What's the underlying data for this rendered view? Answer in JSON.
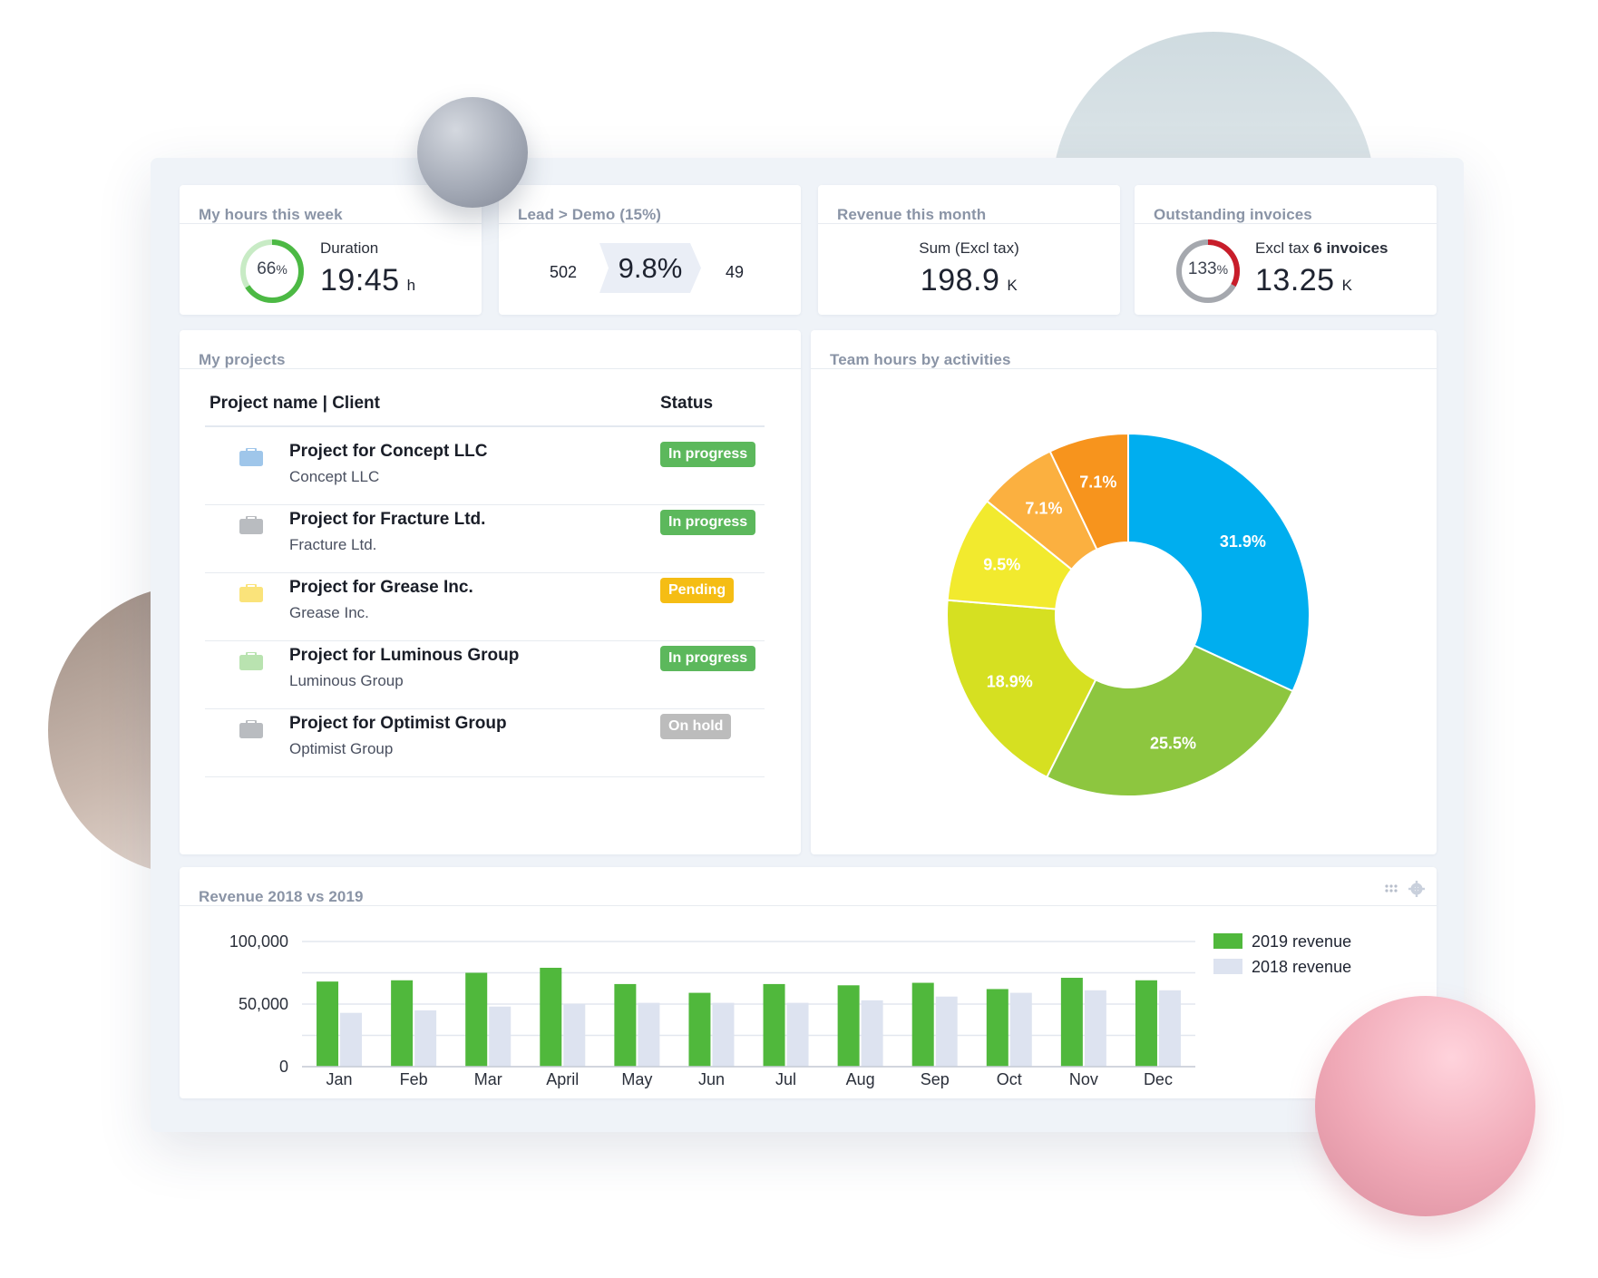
{
  "kpis": {
    "hours": {
      "title": "My hours this week",
      "percent": 66,
      "percent_label": "66",
      "percent_sign": "%",
      "caption": "Duration",
      "value": "19:45",
      "unit": "h",
      "ring_color": "#4cb944",
      "ring_track_color": "#c8ebc5"
    },
    "lead": {
      "title": "Lead > Demo (15%)",
      "left_value": "502",
      "center_value": "9.8%",
      "right_value": "49"
    },
    "revenue": {
      "title": "Revenue this month",
      "caption": "Sum (Excl tax)",
      "value": "198.9",
      "unit": "K"
    },
    "invoices": {
      "title": "Outstanding invoices",
      "percent": 133,
      "percent_label": "133",
      "percent_sign": "%",
      "caption_prefix": "Excl tax",
      "caption_bold": "6 invoices",
      "value": "13.25",
      "unit": "K",
      "ring_color": "#c81d2a",
      "ring_track_color": "#a5a8ae"
    }
  },
  "projects": {
    "title": "My projects",
    "col_name": "Project name | Client",
    "col_status": "Status",
    "rows": [
      {
        "name": "Project for Concept LLC",
        "client": "Concept LLC",
        "status": "In progress",
        "status_color": "#5cb85c",
        "icon_color": "#9fc6ea",
        "icon": "briefcase-icon"
      },
      {
        "name": "Project for Fracture Ltd.",
        "client": "Fracture Ltd.",
        "status": "In progress",
        "status_color": "#5cb85c",
        "icon_color": "#b9bcc0",
        "icon": "briefcase-icon"
      },
      {
        "name": "Project for Grease Inc.",
        "client": "Grease Inc.",
        "status": "Pending",
        "status_color": "#f5bd14",
        "icon_color": "#fae37a",
        "icon": "briefcase-icon"
      },
      {
        "name": "Project for Luminous Group",
        "client": "Luminous Group",
        "status": "In progress",
        "status_color": "#5cb85c",
        "icon_color": "#b9e3b0",
        "icon": "briefcase-icon"
      },
      {
        "name": "Project for Optimist Group",
        "client": "Optimist Group",
        "status": "On hold",
        "status_color": "#bcbcbc",
        "icon_color": "#b9bcc0",
        "icon": "briefcase-icon"
      }
    ]
  },
  "team_hours": {
    "title": "Team hours by activities",
    "chart_data": {
      "type": "pie",
      "title": "Team hours by activities",
      "donut": true,
      "slices": [
        {
          "label": "31.9%",
          "value": 31.9,
          "color": "#00aeef"
        },
        {
          "label": "25.5%",
          "value": 25.5,
          "color": "#8dc63f"
        },
        {
          "label": "18.9%",
          "value": 18.9,
          "color": "#d6e021"
        },
        {
          "label": "9.5%",
          "value": 9.5,
          "color": "#f2ea2e"
        },
        {
          "label": "7.1%",
          "value": 7.1,
          "color": "#fbb040"
        },
        {
          "label": "7.1%",
          "value": 7.1,
          "color": "#f7941d"
        }
      ]
    }
  },
  "revenue_chart": {
    "title": "Revenue 2018 vs 2019",
    "tools": {
      "drag_icon": "drag-handle-icon",
      "settings_icon": "gear-icon"
    },
    "chart_data": {
      "type": "bar",
      "title": "Revenue 2018 vs 2019",
      "categories": [
        "Jan",
        "Feb",
        "Mar",
        "April",
        "May",
        "Jun",
        "Jul",
        "Aug",
        "Sep",
        "Oct",
        "Nov",
        "Dec"
      ],
      "series": [
        {
          "name": "2019 revenue",
          "color": "#50b83c",
          "values": [
            68000,
            69000,
            75000,
            79000,
            66000,
            59000,
            66000,
            65000,
            67000,
            62000,
            71000,
            69000
          ]
        },
        {
          "name": "2018 revenue",
          "color": "#dde3f0",
          "values": [
            43000,
            45000,
            48000,
            50000,
            51000,
            51000,
            51000,
            53000,
            56000,
            59000,
            61000,
            61000
          ]
        }
      ],
      "yticks": [
        "100,000",
        "50,000",
        "0"
      ],
      "ylim": [
        0,
        100000
      ],
      "grid": true,
      "legend_position": "right"
    }
  }
}
